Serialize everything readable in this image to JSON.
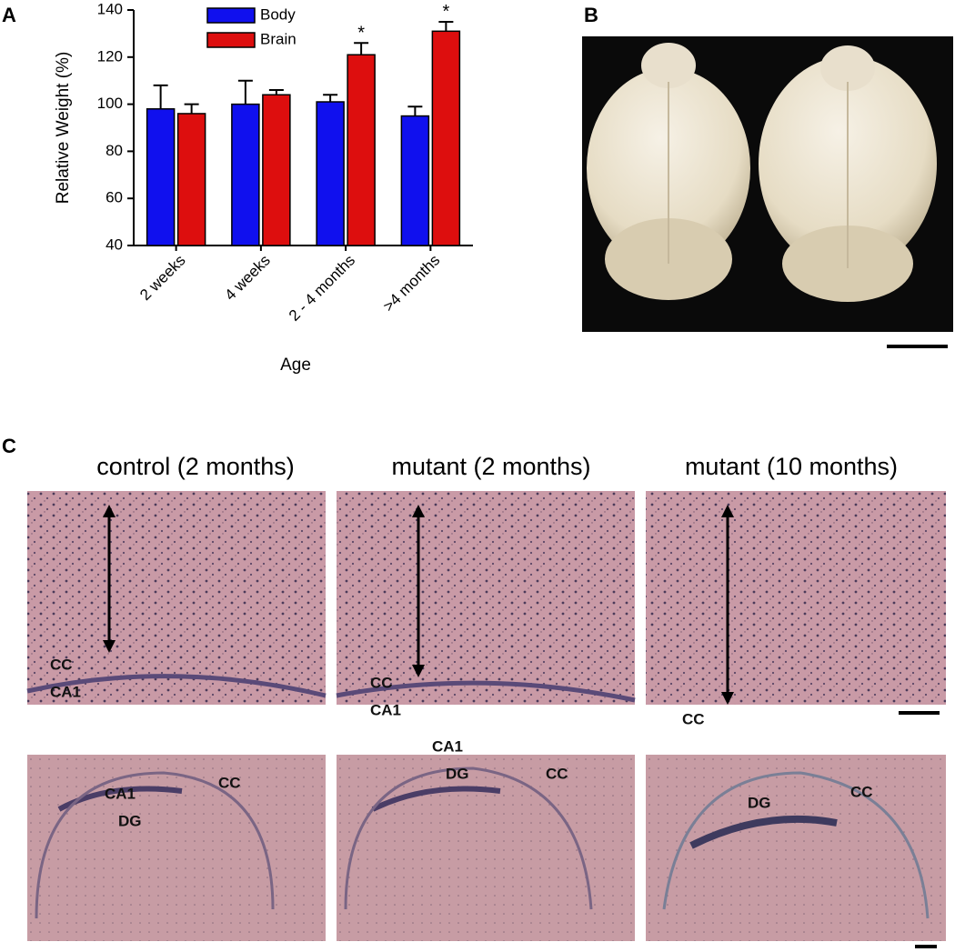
{
  "chart_data": {
    "type": "bar",
    "y_label": "Relative Weight (%)",
    "x_label": "Age",
    "categories": [
      "2 weeks",
      "4 weeks",
      "2 - 4 months",
      ">4 months"
    ],
    "series": [
      {
        "name": "Body",
        "color": "#1010ee",
        "values": [
          98,
          100,
          101,
          95
        ],
        "errors": [
          10,
          10,
          3,
          4
        ]
      },
      {
        "name": "Brain",
        "color": "#dd0e0e",
        "values": [
          96,
          104,
          121,
          131
        ],
        "errors": [
          4,
          2,
          5,
          4
        ],
        "significance_labels": [
          null,
          null,
          "*",
          "*"
        ]
      }
    ],
    "ylim": [
      40,
      140
    ],
    "yticks": [
      40,
      60,
      80,
      100,
      120,
      140
    ],
    "grid": false
  },
  "panel_labels": [
    "A",
    "B",
    "C"
  ],
  "histology": {
    "columns": [
      {
        "title": "control (2 months)",
        "top_labels": [
          "CC",
          "CA1"
        ],
        "bottom_labels": [
          "CA1",
          "DG",
          "CC"
        ]
      },
      {
        "title": "mutant (2 months)",
        "top_labels": [
          "CC",
          "CA1"
        ],
        "bottom_labels": [
          "CA1",
          "DG",
          "CC"
        ]
      },
      {
        "title": "mutant (10 months)",
        "top_labels": [
          "CC"
        ],
        "bottom_labels": [
          "DG",
          "CC"
        ]
      }
    ]
  }
}
